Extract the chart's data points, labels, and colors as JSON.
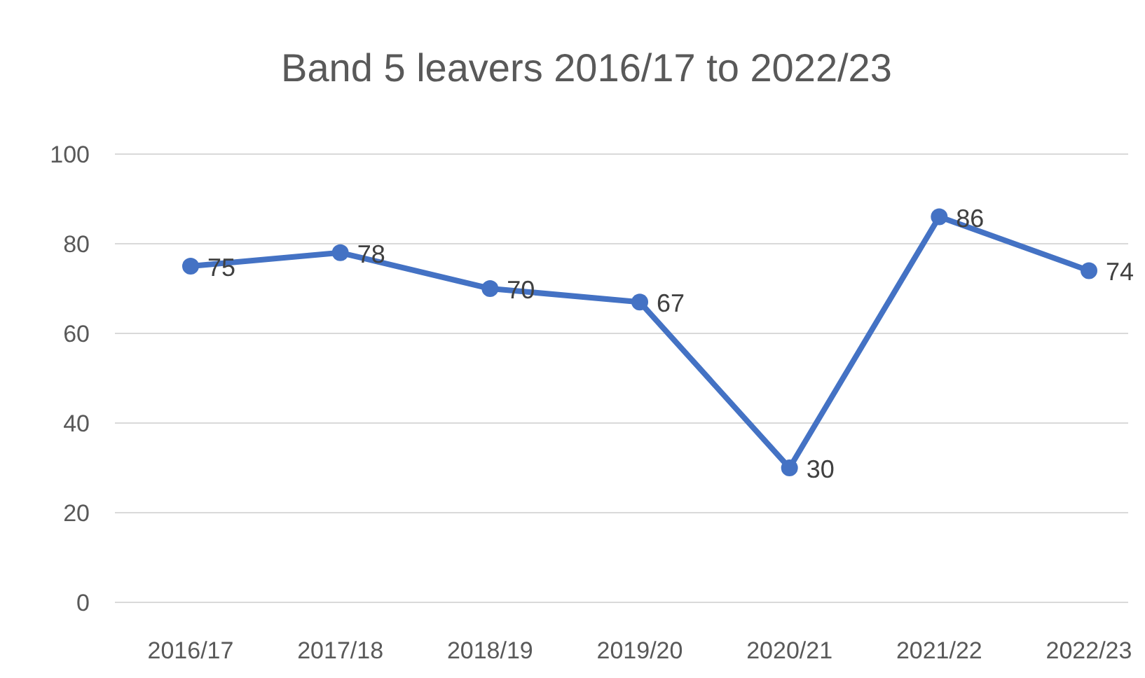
{
  "chart_data": {
    "type": "line",
    "title": "Band 5 leavers 2016/17 to 2022/23",
    "categories": [
      "2016/17",
      "2017/18",
      "2018/19",
      "2019/20",
      "2020/21",
      "2021/22",
      "2022/23"
    ],
    "series": [
      {
        "color": "#4472c4",
        "values": [
          75,
          78,
          70,
          67,
          30,
          86,
          74
        ]
      }
    ],
    "ylim": [
      0,
      100
    ],
    "yticks": [
      0,
      20,
      40,
      60,
      80,
      100
    ],
    "grid": "y",
    "marker": "circle",
    "data_labels": true
  }
}
